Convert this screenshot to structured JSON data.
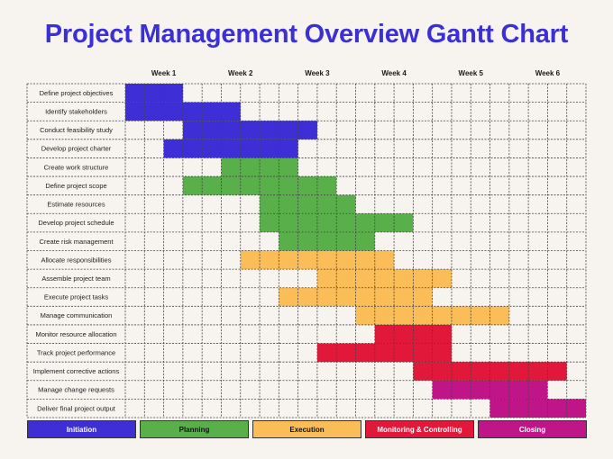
{
  "title": "Project Management Overview Gantt Chart",
  "chart_data": {
    "type": "gantt",
    "weeks": [
      "Week 1",
      "Week 2",
      "Week 3",
      "Week 4",
      "Week 5",
      "Week 6"
    ],
    "phases": [
      {
        "name": "Initiation",
        "color": "#3d2ed6",
        "text_color": "#ffffff"
      },
      {
        "name": "Planning",
        "color": "#59b04a",
        "text_color": "#111111"
      },
      {
        "name": "Execution",
        "color": "#fbbd57",
        "text_color": "#111111"
      },
      {
        "name": "Monitoring & Controlling",
        "color": "#e2183a",
        "text_color": "#ffffff"
      },
      {
        "name": "Closing",
        "color": "#bf1589",
        "text_color": "#ffffff"
      }
    ],
    "tasks": [
      {
        "name": "Define project objectives",
        "phase": 0,
        "start_day": 1,
        "end_day": 3
      },
      {
        "name": "Identify stakeholders",
        "phase": 0,
        "start_day": 1,
        "end_day": 6
      },
      {
        "name": "Conduct feasibility study",
        "phase": 0,
        "start_day": 4,
        "end_day": 10
      },
      {
        "name": "Develop project charter",
        "phase": 0,
        "start_day": 3,
        "end_day": 9
      },
      {
        "name": "Create work structure",
        "phase": 1,
        "start_day": 6,
        "end_day": 9
      },
      {
        "name": "Define project scope",
        "phase": 1,
        "start_day": 4,
        "end_day": 11
      },
      {
        "name": "Estimate resources",
        "phase": 1,
        "start_day": 8,
        "end_day": 12
      },
      {
        "name": "Develop project schedule",
        "phase": 1,
        "start_day": 8,
        "end_day": 15
      },
      {
        "name": "Create risk management",
        "phase": 1,
        "start_day": 9,
        "end_day": 13
      },
      {
        "name": "Allocate responsibilities",
        "phase": 2,
        "start_day": 7,
        "end_day": 14
      },
      {
        "name": "Assemble project team",
        "phase": 2,
        "start_day": 11,
        "end_day": 17
      },
      {
        "name": "Execute project tasks",
        "phase": 2,
        "start_day": 9,
        "end_day": 16
      },
      {
        "name": "Manage communication",
        "phase": 2,
        "start_day": 13,
        "end_day": 20
      },
      {
        "name": "Monitor resource allocation",
        "phase": 3,
        "start_day": 14,
        "end_day": 17
      },
      {
        "name": "Track project performance",
        "phase": 3,
        "start_day": 11,
        "end_day": 17
      },
      {
        "name": "Implement corrective actions",
        "phase": 3,
        "start_day": 16,
        "end_day": 23
      },
      {
        "name": "Manage change requests",
        "phase": 4,
        "start_day": 17,
        "end_day": 22
      },
      {
        "name": "Deliver final project output",
        "phase": 4,
        "start_day": 20,
        "end_day": 24
      }
    ],
    "days_per_week": 4
  }
}
